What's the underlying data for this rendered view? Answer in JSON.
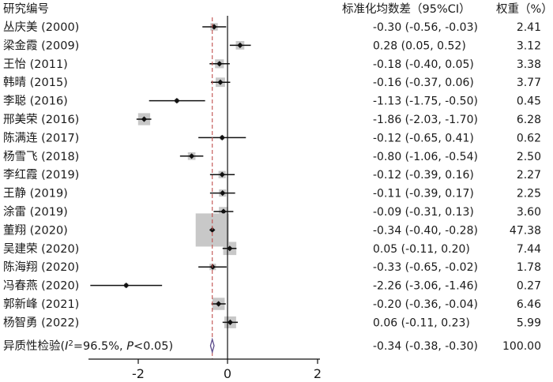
{
  "chart_data": {
    "type": "forest",
    "headers": {
      "study": "研究编号",
      "ci": "标准化均数差（95%CI）",
      "weight": "权重（%）"
    },
    "studies": [
      {
        "label": "丛庆美 (2000)",
        "smd": -0.3,
        "lower": -0.56,
        "upper": -0.03,
        "ci_text": "-0.30 (-0.56, -0.03)",
        "weight": 2.41,
        "weight_text": "2.41"
      },
      {
        "label": "梁金霞 (2009)",
        "smd": 0.28,
        "lower": 0.05,
        "upper": 0.52,
        "ci_text": "0.28 (0.05, 0.52)",
        "weight": 3.12,
        "weight_text": "3.12"
      },
      {
        "label": "王怡 (2011)",
        "smd": -0.18,
        "lower": -0.4,
        "upper": 0.05,
        "ci_text": "-0.18 (-0.40, 0.05)",
        "weight": 3.38,
        "weight_text": "3.38"
      },
      {
        "label": "韩晴 (2015)",
        "smd": -0.16,
        "lower": -0.37,
        "upper": 0.06,
        "ci_text": "-0.16 (-0.37, 0.06)",
        "weight": 3.77,
        "weight_text": "3.77"
      },
      {
        "label": "李聪 (2016)",
        "smd": -1.13,
        "lower": -1.75,
        "upper": -0.5,
        "ci_text": "-1.13 (-1.75, -0.50)",
        "weight": 0.45,
        "weight_text": "0.45"
      },
      {
        "label": "邢美荣 (2016)",
        "smd": -1.86,
        "lower": -2.03,
        "upper": -1.7,
        "ci_text": "-1.86 (-2.03, -1.70)",
        "weight": 6.28,
        "weight_text": "6.28"
      },
      {
        "label": "陈满连 (2017)",
        "smd": -0.12,
        "lower": -0.65,
        "upper": 0.41,
        "ci_text": "-0.12 (-0.65, 0.41)",
        "weight": 0.62,
        "weight_text": "0.62"
      },
      {
        "label": "杨雪飞 (2018)",
        "smd": -0.8,
        "lower": -1.06,
        "upper": -0.54,
        "ci_text": "-0.80 (-1.06, -0.54)",
        "weight": 2.5,
        "weight_text": "2.50"
      },
      {
        "label": "李红霞 (2019)",
        "smd": -0.12,
        "lower": -0.39,
        "upper": 0.16,
        "ci_text": "-0.12 (-0.39, 0.16)",
        "weight": 2.27,
        "weight_text": "2.27"
      },
      {
        "label": "王静 (2019)",
        "smd": -0.11,
        "lower": -0.39,
        "upper": 0.17,
        "ci_text": "-0.11 (-0.39, 0.17)",
        "weight": 2.25,
        "weight_text": "2.25"
      },
      {
        "label": "涂雷 (2019)",
        "smd": -0.09,
        "lower": -0.31,
        "upper": 0.13,
        "ci_text": "-0.09 (-0.31, 0.13)",
        "weight": 3.6,
        "weight_text": "3.60"
      },
      {
        "label": "董翔 (2020)",
        "smd": -0.34,
        "lower": -0.4,
        "upper": -0.28,
        "ci_text": "-0.34 (-0.40, -0.28)",
        "weight": 47.38,
        "weight_text": "47.38"
      },
      {
        "label": "吴建荣 (2020)",
        "smd": 0.05,
        "lower": -0.11,
        "upper": 0.2,
        "ci_text": "0.05 (-0.11, 0.20)",
        "weight": 7.44,
        "weight_text": "7.44"
      },
      {
        "label": "陈海翔 (2020)",
        "smd": -0.33,
        "lower": -0.65,
        "upper": -0.02,
        "ci_text": "-0.33 (-0.65, -0.02)",
        "weight": 1.78,
        "weight_text": "1.78"
      },
      {
        "label": "冯春燕 (2020)",
        "smd": -2.26,
        "lower": -3.06,
        "upper": -1.46,
        "ci_text": "-2.26 (-3.06, -1.46)",
        "weight": 0.27,
        "weight_text": "0.27"
      },
      {
        "label": "郭新峰 (2021)",
        "smd": -0.2,
        "lower": -0.36,
        "upper": -0.04,
        "ci_text": "-0.20 (-0.36, -0.04)",
        "weight": 6.46,
        "weight_text": "6.46"
      },
      {
        "label": "杨智勇 (2022)",
        "smd": 0.06,
        "lower": -0.11,
        "upper": 0.23,
        "ci_text": "0.06 (-0.11, 0.23)",
        "weight": 5.99,
        "weight_text": "5.99"
      }
    ],
    "overall": {
      "label": "异质性检验(I²=96.5%, P<0.05)",
      "smd": -0.34,
      "lower": -0.38,
      "upper": -0.3,
      "ci_text": "-0.34 (-0.38, -0.30)",
      "weight": 100.0,
      "weight_text": "100.00"
    },
    "xaxis": {
      "ticks": [
        -2,
        0,
        2
      ],
      "tick_labels": [
        "-2",
        "0",
        "2"
      ],
      "range": [
        -3.06,
        2
      ]
    },
    "reference_line": 0,
    "pooled_line": -0.34,
    "colors": {
      "box": "#c8c8c8",
      "point": "#111111",
      "line": "#111111",
      "pooled_line": "#c0504d",
      "diamond": "#5a4a8a"
    }
  }
}
